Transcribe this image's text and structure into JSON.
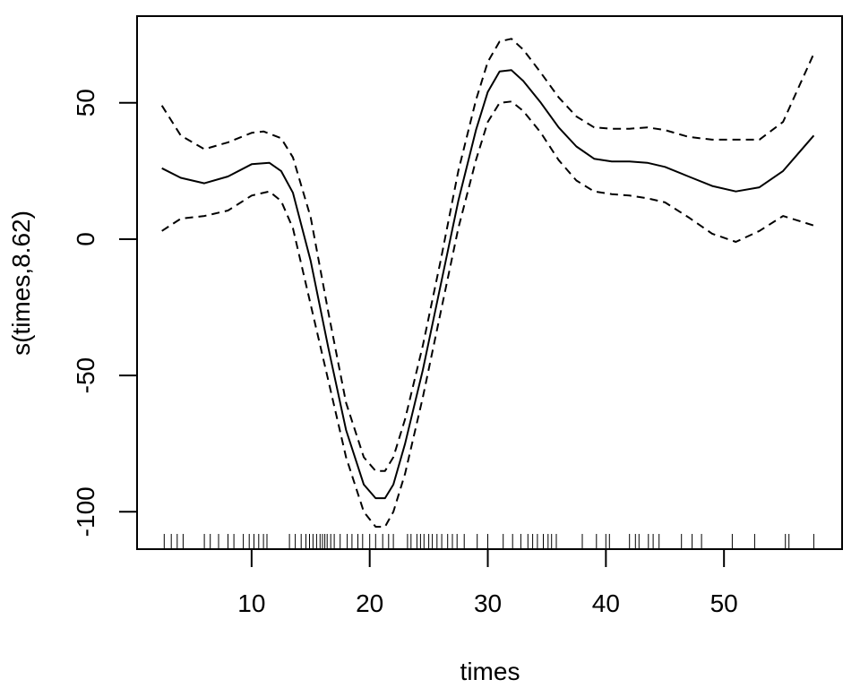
{
  "chart_data": {
    "type": "line",
    "title": "",
    "xlabel": "times",
    "ylabel": "s(times,8.62)",
    "xlim": [
      0.3,
      60.0
    ],
    "ylim": [
      -113.7,
      81.8
    ],
    "xticks": [
      10,
      20,
      30,
      40,
      50
    ],
    "xtick_labels": [
      "10",
      "20",
      "30",
      "40",
      "50"
    ],
    "yticks": [
      -100,
      -50,
      0,
      50
    ],
    "ytick_labels": [
      "-100",
      "-50",
      "0",
      "50"
    ],
    "grid": false,
    "legend": "none",
    "series": [
      {
        "style": "solid",
        "x": [
          2.4,
          4.0,
          6.0,
          8.0,
          10.0,
          11.5,
          12.5,
          13.5,
          15.0,
          16.5,
          18.0,
          19.5,
          20.5,
          21.3,
          22.0,
          23.0,
          24.5,
          26.0,
          27.5,
          29.0,
          30.0,
          31.0,
          32.0,
          33.0,
          34.5,
          36.0,
          37.5,
          39.0,
          40.5,
          42.0,
          43.5,
          45.0,
          47.0,
          49.0,
          51.0,
          53.0,
          55.0,
          57.6
        ],
        "y": [
          26,
          22.5,
          20.5,
          23,
          27.5,
          28,
          25,
          17,
          -8,
          -40,
          -70,
          -90,
          -95,
          -95,
          -90,
          -75,
          -48,
          -17,
          14,
          40,
          54,
          61.5,
          62,
          58,
          50,
          41,
          34,
          29.5,
          28.5,
          28.5,
          28,
          26.5,
          23,
          19.5,
          17.5,
          19,
          25,
          38
        ]
      },
      {
        "style": "dashed",
        "x": [
          2.4,
          4.0,
          6.0,
          8.0,
          10.0,
          11.0,
          12.5,
          13.5,
          15.0,
          16.5,
          18.0,
          19.5,
          20.5,
          21.3,
          22.0,
          23.0,
          24.5,
          26.0,
          27.5,
          29.0,
          30.0,
          31.0,
          32.0,
          33.0,
          34.5,
          36.0,
          37.5,
          39.0,
          40.5,
          42.0,
          43.5,
          45.0,
          47.0,
          49.0,
          51.0,
          53.0,
          55.0,
          57.6
        ],
        "y": [
          49,
          38,
          33,
          35.5,
          39,
          39.5,
          37,
          30,
          8,
          -27,
          -60,
          -80,
          -85,
          -85,
          -80,
          -66,
          -39,
          -8,
          25,
          51,
          65,
          72.5,
          73.5,
          69.5,
          61,
          52,
          45,
          41,
          40.5,
          40.5,
          41,
          40,
          37.5,
          36.5,
          36.5,
          36.5,
          43,
          68
        ]
      },
      {
        "style": "dashed",
        "x": [
          2.4,
          4.0,
          6.0,
          8.0,
          10.0,
          11.5,
          12.5,
          13.5,
          15.0,
          16.5,
          18.0,
          19.5,
          20.5,
          21.3,
          22.0,
          23.0,
          24.5,
          26.0,
          27.5,
          29.0,
          30.0,
          31.0,
          32.0,
          33.0,
          34.5,
          36.0,
          37.5,
          39.0,
          40.5,
          42.0,
          43.5,
          45.0,
          47.0,
          49.0,
          51.0,
          53.0,
          55.0,
          57.6
        ],
        "y": [
          3,
          7.5,
          8.5,
          10.5,
          16,
          17.5,
          14,
          4,
          -24,
          -52,
          -80,
          -100,
          -105.5,
          -105.5,
          -100,
          -86,
          -58,
          -27,
          4,
          29,
          43,
          50,
          50.5,
          47,
          39,
          29,
          21.5,
          17.5,
          16.5,
          16,
          15,
          13.5,
          8,
          2,
          -1,
          3,
          8.5,
          5
        ]
      }
    ],
    "rug": [
      2.6,
      3.2,
      3.7,
      4.2,
      6.0,
      6.5,
      7.2,
      8.0,
      8.5,
      9.3,
      9.8,
      10.2,
      10.6,
      11.0,
      11.3,
      13.2,
      13.7,
      14.2,
      14.6,
      14.9,
      15.2,
      15.5,
      15.8,
      16.0,
      16.2,
      16.4,
      16.7,
      17.0,
      17.5,
      18.1,
      18.5,
      19.0,
      19.4,
      20.0,
      20.5,
      21.1,
      21.6,
      22.0,
      23.2,
      23.5,
      24.0,
      24.3,
      24.6,
      25.0,
      25.3,
      25.7,
      26.1,
      26.6,
      27.0,
      27.4,
      28.0,
      29.1,
      30.0,
      31.3,
      32.1,
      32.8,
      33.4,
      33.8,
      34.2,
      34.7,
      35.1,
      35.4,
      35.8,
      38.0,
      39.2,
      40.0,
      40.3,
      42.0,
      42.5,
      42.8,
      43.6,
      44.0,
      44.5,
      46.4,
      47.3,
      48.1,
      50.7,
      52.6,
      55.2,
      55.5,
      57.6
    ]
  }
}
